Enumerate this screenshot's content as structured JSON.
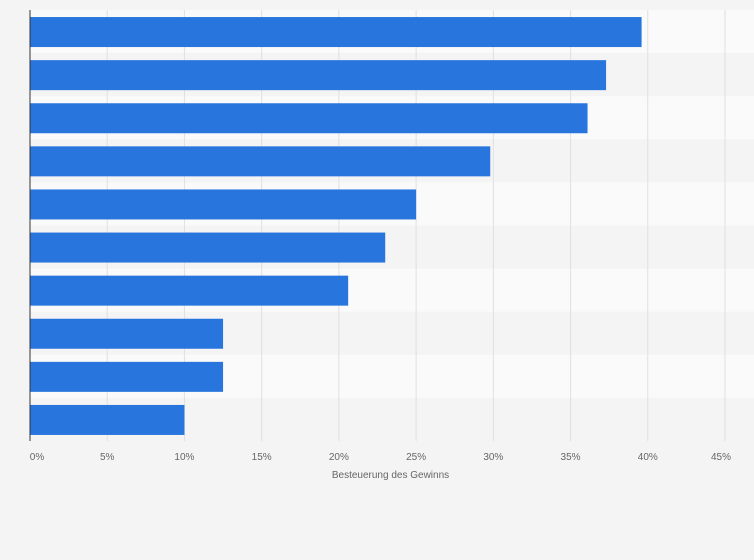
{
  "colors": {
    "page_background": "#f4f4f4",
    "plot_band_light": "#fafafa",
    "plot_band_dark": "#f4f4f4",
    "bar": "#2775dd",
    "gridline": "#e0e0e0",
    "axis": "#333333",
    "text": "#666666"
  },
  "chart_data": {
    "type": "bar",
    "orientation": "horizontal",
    "title": "",
    "xlabel": "Besteuerung des Gewinns",
    "ylabel": "",
    "categories": [
      "",
      "",
      "",
      "",
      "",
      "",
      "",
      "",
      "",
      ""
    ],
    "values": [
      39.6,
      37.3,
      36.1,
      29.8,
      25.0,
      23.0,
      20.6,
      12.5,
      12.5,
      10.0
    ],
    "unit": "%",
    "xlim": [
      0,
      45
    ],
    "xticks": [
      0,
      5,
      10,
      15,
      20,
      25,
      30,
      35,
      40,
      45
    ],
    "xtick_labels": [
      "0%",
      "5%",
      "10%",
      "15%",
      "20%",
      "25%",
      "30%",
      "35%",
      "40%",
      "45%"
    ],
    "grid": true,
    "legend": "none"
  }
}
